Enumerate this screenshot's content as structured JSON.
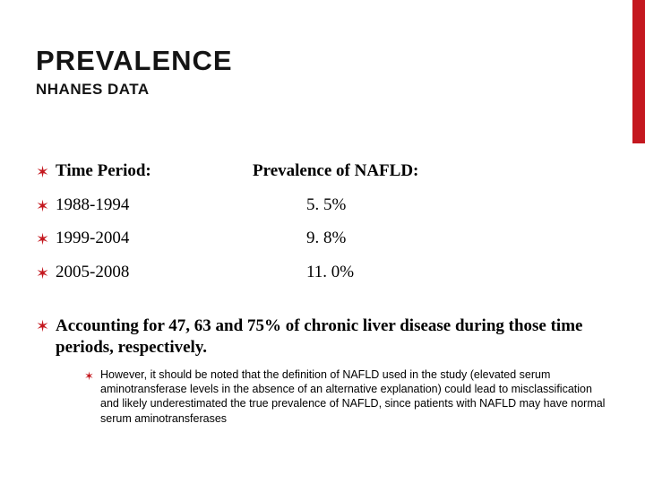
{
  "accent_color": "#c4181f",
  "text_color": "#141414",
  "title": {
    "text": "PREVALENCE",
    "fontsize": 31,
    "color": "#141414"
  },
  "subtitle": {
    "text": "NHANES DATA",
    "fontsize": 17,
    "color": "#141414"
  },
  "columns": {
    "period_header": "Time Period:",
    "value_header": "Prevalence of NAFLD:"
  },
  "rows": [
    {
      "period": "1988-1994",
      "value": "5. 5%"
    },
    {
      "period": "1999-2004",
      "value": "9. 8%"
    },
    {
      "period": "2005-2008",
      "value": "11. 0%"
    }
  ],
  "summary": "Accounting for 47, 63 and 75% of chronic liver disease during those time periods, respectively.",
  "footnote": "However, it should be noted that the definition of NAFLD used in the study (elevated serum aminotransferase levels in the absence of an alternative explanation) could lead to misclassification and likely underestimated the true prevalence of NAFLD, since patients with NAFLD may have normal serum aminotransferases",
  "bullet_glyph": "✶",
  "bullet_color": "#c4181f"
}
